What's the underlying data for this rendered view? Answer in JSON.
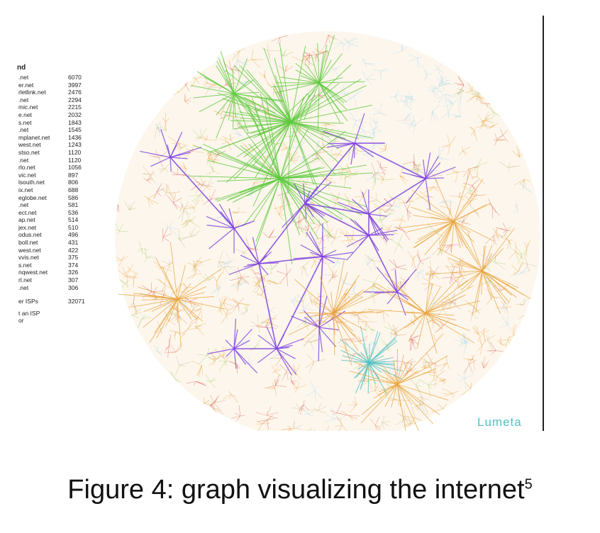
{
  "legend": {
    "title": "nd",
    "entries": [
      {
        "name": ".net",
        "value": "6070"
      },
      {
        "name": "er.net",
        "value": "3997"
      },
      {
        "name": "rletlink.net",
        "value": "2476"
      },
      {
        "name": ".net",
        "value": "2294"
      },
      {
        "name": "mic.net",
        "value": "2215"
      },
      {
        "name": "e.net",
        "value": "2032"
      },
      {
        "name": "s.net",
        "value": "1843"
      },
      {
        "name": ".net",
        "value": "1545"
      },
      {
        "name": "mplanet.net",
        "value": "1436"
      },
      {
        "name": "west.net",
        "value": "1243"
      },
      {
        "name": "stso.net",
        "value": "1120"
      },
      {
        "name": ".net",
        "value": "1120"
      },
      {
        "name": "rlo.net",
        "value": "1056"
      },
      {
        "name": "vic.net",
        "value": "897"
      },
      {
        "name": "lsouth.net",
        "value": "806"
      },
      {
        "name": "ix.net",
        "value": "688"
      },
      {
        "name": "eglobe.net",
        "value": "586"
      },
      {
        "name": ".net",
        "value": "581"
      },
      {
        "name": "ect.net",
        "value": "536"
      },
      {
        "name": "ap.net",
        "value": "514"
      },
      {
        "name": "jex.net",
        "value": "510"
      },
      {
        "name": "odus.net",
        "value": "496"
      },
      {
        "name": "boll.net",
        "value": "431"
      },
      {
        "name": "west.net",
        "value": "422"
      },
      {
        "name": "vvis.net",
        "value": "375"
      },
      {
        "name": "s.net",
        "value": "374"
      },
      {
        "name": "nqwest.net",
        "value": "326"
      },
      {
        "name": "rl.net",
        "value": "307"
      },
      {
        "name": ".net",
        "value": "306"
      }
    ],
    "other": {
      "name": "er ISPs",
      "value": "32071"
    },
    "notes": [
      "t an ISP",
      "or"
    ]
  },
  "brand": "Lumeta",
  "caption": {
    "text": "Figure 4: graph visualizing the internet",
    "superscript": "5"
  },
  "colors": {
    "background": "#ffffff",
    "orange": "#e8a23a",
    "green": "#5ec93f",
    "purple": "#7a3ee0",
    "light_blue": "#a9d9ef",
    "red": "#d9534f",
    "teal": "#4fc1c6",
    "caption": "#111111"
  }
}
